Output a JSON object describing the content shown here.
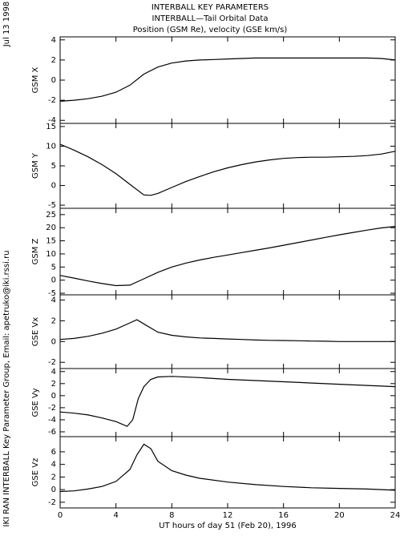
{
  "title": [
    "INTERBALL KEY PARAMETERS",
    "INTERBALL—Tail Orbital Data",
    "Position (GSM Re), velocity (GSE km/s)"
  ],
  "date": "Jul 13 1998",
  "side_note": "IKI RAN INTERBALL Key Parameter Group, Email: apetruko@iki.rssi.ru",
  "x_label": "UT hours of day  51 (Feb 20), 1996",
  "chart_data": [
    {
      "type": "line",
      "ylabel": "GSM X",
      "xlim": [
        0,
        24
      ],
      "xticks": [
        0,
        4,
        8,
        12,
        16,
        20,
        24
      ],
      "ylim": [
        -4.3,
        4.3
      ],
      "yticks": [
        -4,
        -2,
        0,
        2,
        4
      ],
      "color": "#000000",
      "x": [
        0,
        1,
        2,
        3,
        4,
        5,
        6,
        7,
        8,
        9,
        10,
        11,
        12,
        13,
        14,
        15,
        16,
        17,
        18,
        19,
        20,
        21,
        22,
        23,
        24
      ],
      "values": [
        -2.1,
        -2.0,
        -1.85,
        -1.6,
        -1.2,
        -0.5,
        0.6,
        1.3,
        1.7,
        1.9,
        2.0,
        2.05,
        2.1,
        2.15,
        2.2,
        2.2,
        2.2,
        2.2,
        2.2,
        2.2,
        2.2,
        2.2,
        2.2,
        2.15,
        2.0
      ]
    },
    {
      "type": "line",
      "ylabel": "GSM Y",
      "xlim": [
        0,
        24
      ],
      "xticks": [
        0,
        4,
        8,
        12,
        16,
        20,
        24
      ],
      "ylim": [
        -5.8,
        15.8
      ],
      "yticks": [
        -5,
        0,
        5,
        10,
        15
      ],
      "color": "#000000",
      "x": [
        0,
        1,
        2,
        3,
        4,
        5,
        6,
        6.5,
        7,
        8,
        9,
        10,
        11,
        12,
        13,
        14,
        15,
        16,
        17,
        18,
        19,
        20,
        21,
        22,
        23,
        24
      ],
      "values": [
        10.5,
        9,
        7.3,
        5.3,
        3,
        0.3,
        -2.4,
        -2.5,
        -2.0,
        -0.5,
        1,
        2.3,
        3.5,
        4.5,
        5.3,
        6.0,
        6.5,
        6.9,
        7.1,
        7.2,
        7.2,
        7.3,
        7.4,
        7.6,
        8.0,
        8.7
      ]
    },
    {
      "type": "line",
      "ylabel": "GSM Z",
      "xlim": [
        0,
        24
      ],
      "xticks": [
        0,
        4,
        8,
        12,
        16,
        20,
        24
      ],
      "ylim": [
        -5.6,
        27.4
      ],
      "yticks": [
        -5,
        0,
        5,
        10,
        15,
        20,
        25
      ],
      "color": "#000000",
      "x": [
        0,
        1,
        2,
        3,
        4,
        5,
        6,
        7,
        8,
        9,
        10,
        11,
        12,
        13,
        14,
        15,
        16,
        17,
        18,
        19,
        20,
        21,
        22,
        23,
        24
      ],
      "values": [
        1.8,
        0.8,
        -0.3,
        -1.3,
        -2.1,
        -1.9,
        0.5,
        3,
        5,
        6.5,
        7.7,
        8.7,
        9.6,
        10.5,
        11.4,
        12.3,
        13.3,
        14.3,
        15.3,
        16.3,
        17.3,
        18.2,
        19.1,
        19.9,
        20.5
      ]
    },
    {
      "type": "line",
      "ylabel": "GSE Vx",
      "xlim": [
        0,
        24
      ],
      "xticks": [
        0,
        4,
        8,
        12,
        16,
        20,
        24
      ],
      "ylim": [
        -2.6,
        4.5
      ],
      "yticks": [
        -2,
        0,
        2,
        4
      ],
      "color": "#000000",
      "x": [
        0,
        1,
        2,
        3,
        4,
        5,
        5.5,
        6,
        7,
        8,
        9,
        10,
        11,
        12,
        13,
        14,
        15,
        16,
        17,
        18,
        19,
        20,
        21,
        22,
        23,
        24
      ],
      "values": [
        0.2,
        0.3,
        0.5,
        0.8,
        1.2,
        1.8,
        2.1,
        1.7,
        0.9,
        0.6,
        0.45,
        0.35,
        0.3,
        0.25,
        0.2,
        0.15,
        0.12,
        0.1,
        0.08,
        0.05,
        0.03,
        0.0,
        0.0,
        0.0,
        0.0,
        0.0
      ]
    },
    {
      "type": "line",
      "ylabel": "GSE Vy",
      "xlim": [
        0,
        24
      ],
      "xticks": [
        0,
        4,
        8,
        12,
        16,
        20,
        24
      ],
      "ylim": [
        -6.8,
        4.5
      ],
      "yticks": [
        -6,
        -4,
        -2,
        0,
        2,
        4
      ],
      "color": "#000000",
      "x": [
        0,
        1,
        2,
        3,
        4,
        4.8,
        5.2,
        5.6,
        6,
        6.5,
        7,
        8,
        10,
        12,
        16,
        20,
        24
      ],
      "values": [
        -2.7,
        -2.9,
        -3.2,
        -3.7,
        -4.3,
        -5.1,
        -4,
        -0.5,
        1.5,
        2.7,
        3.1,
        3.2,
        3.0,
        2.7,
        2.3,
        1.9,
        1.5
      ]
    },
    {
      "type": "line",
      "ylabel": "GSE Vz",
      "xlim": [
        0,
        24
      ],
      "xticks": [
        0,
        4,
        8,
        12,
        16,
        20,
        24
      ],
      "ylim": [
        -2.9,
        8.4
      ],
      "yticks": [
        -2,
        0,
        2,
        4,
        6
      ],
      "color": "#000000",
      "x": [
        0,
        1,
        2,
        3,
        4,
        5,
        5.5,
        6,
        6.5,
        7,
        8,
        9,
        10,
        12,
        14,
        16,
        18,
        20,
        22,
        24
      ],
      "values": [
        -0.3,
        -0.2,
        0.1,
        0.5,
        1.3,
        3.2,
        5.5,
        7.2,
        6.5,
        4.5,
        3.0,
        2.3,
        1.8,
        1.2,
        0.8,
        0.5,
        0.3,
        0.2,
        0.1,
        -0.1
      ]
    }
  ]
}
